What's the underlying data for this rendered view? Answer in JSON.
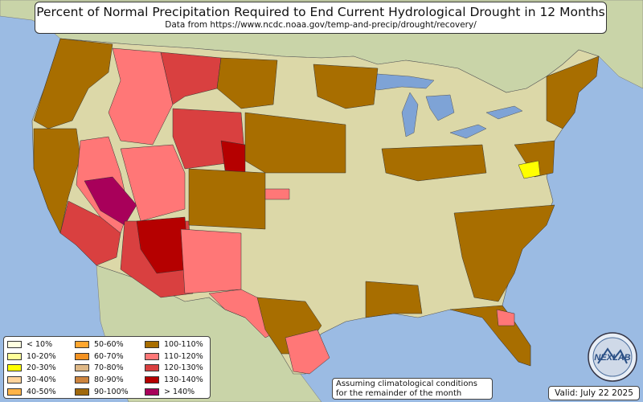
{
  "title": "Percent of Normal Precipitation Required to End Current Hydrological Drought in 12 Months",
  "subtitle": "Data from https://www.ncdc.noaa.gov/temp-and-precip/drought/recovery/",
  "legend": [
    {
      "label": "< 10%",
      "color": "#ffffe0"
    },
    {
      "label": "10-20%",
      "color": "#ffff99"
    },
    {
      "label": "20-30%",
      "color": "#ffff00"
    },
    {
      "label": "30-40%",
      "color": "#ffd39b"
    },
    {
      "label": "40-50%",
      "color": "#ffb347"
    },
    {
      "label": "50-60%",
      "color": "#ffa62e"
    },
    {
      "label": "60-70%",
      "color": "#f39222"
    },
    {
      "label": "70-80%",
      "color": "#deb887"
    },
    {
      "label": "80-90%",
      "color": "#cd853f"
    },
    {
      "label": "90-100%",
      "color": "#a0680c"
    },
    {
      "label": "100-110%",
      "color": "#a86e00"
    },
    {
      "label": "110-120%",
      "color": "#ff7777"
    },
    {
      "label": "120-130%",
      "color": "#d94040"
    },
    {
      "label": "130-140%",
      "color": "#b50000"
    },
    {
      "label": "> 140%",
      "color": "#a8005a"
    }
  ],
  "note_line1": "Assuming climatological conditions",
  "note_line2": "for the remainder of the month",
  "valid": "Valid: July 22 2025",
  "logo_text": "NEXLAB",
  "colors": {
    "ocean": "#9bbbe3",
    "land": "#dcd8a8",
    "foreign_land": "#c9d4a8",
    "lakes": "#7ea3d6"
  }
}
